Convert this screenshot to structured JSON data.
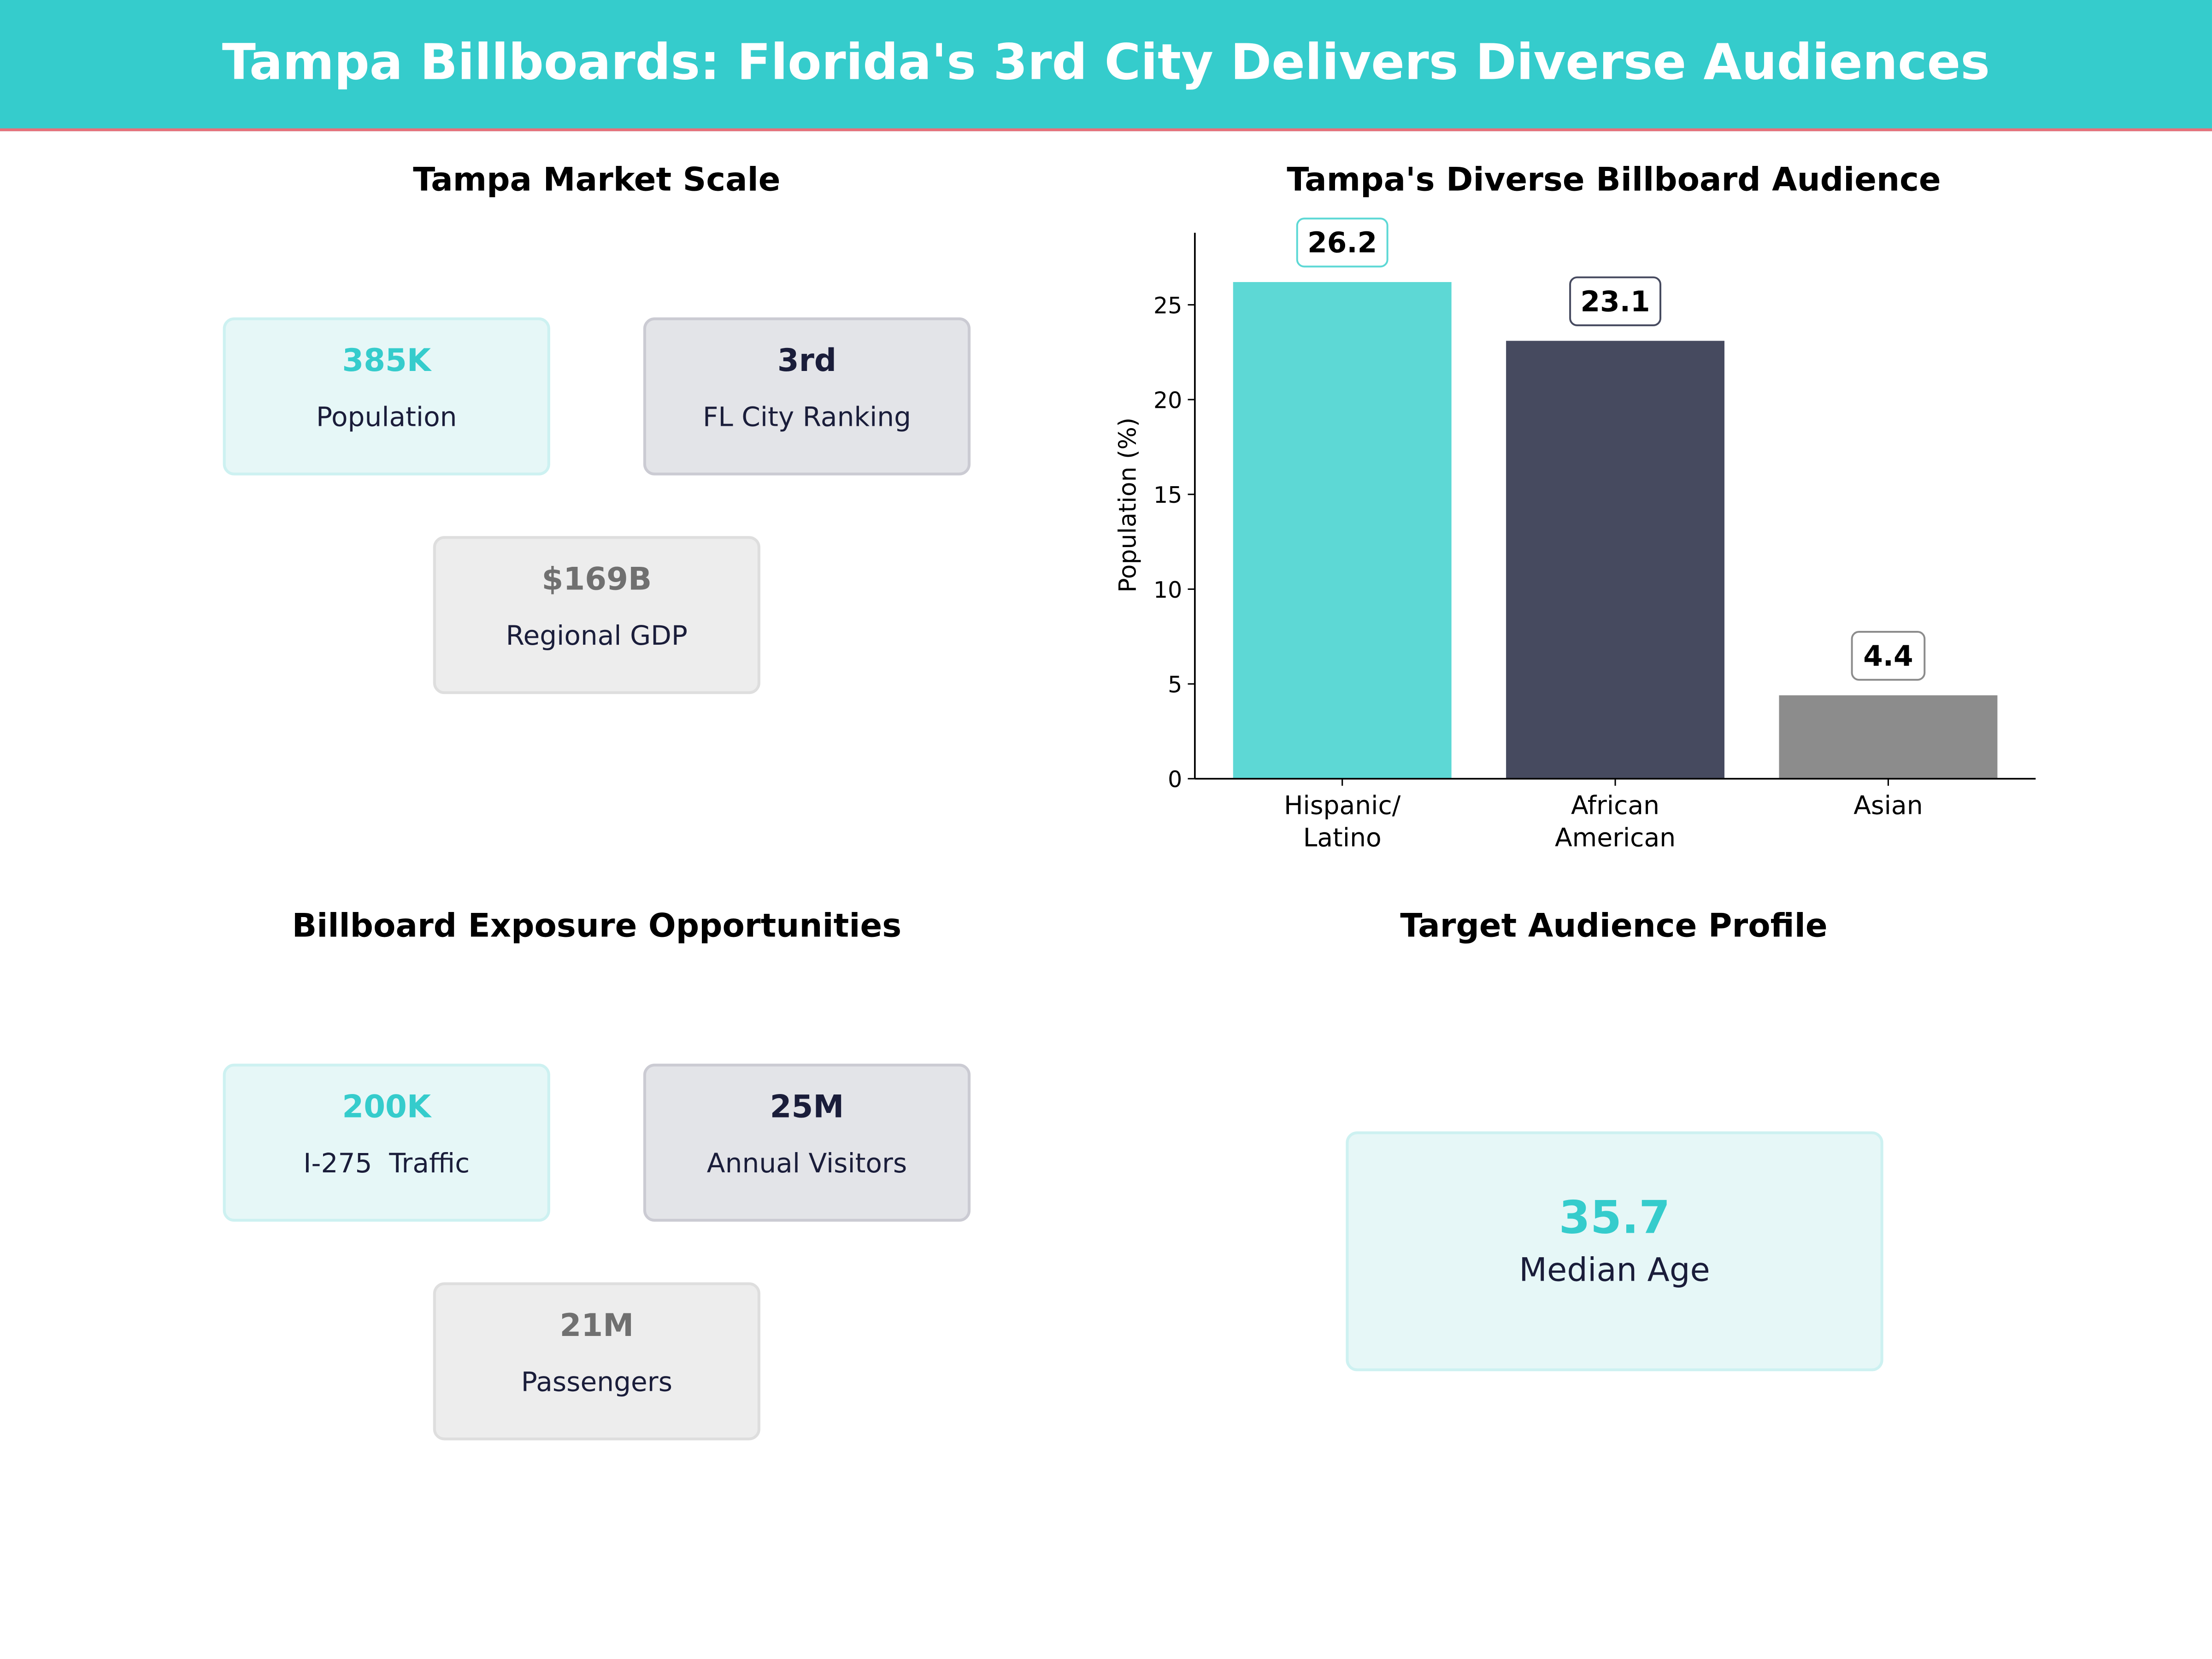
{
  "header": {
    "title": "Tampa Billboards: Florida's 3rd City Delivers Diverse Audiences"
  },
  "market_scale": {
    "title": "Tampa Market Scale",
    "cards": [
      {
        "value": "385K",
        "label": "Population",
        "style": "teal"
      },
      {
        "value": "3rd",
        "label": "FL City Ranking",
        "style": "dark"
      },
      {
        "value": "$169B",
        "label": "Regional GDP",
        "style": "gray"
      }
    ]
  },
  "exposure": {
    "title": "Billboard Exposure Opportunities",
    "cards": [
      {
        "value": "200K",
        "label": "I-275  Traffic",
        "style": "teal"
      },
      {
        "value": "25M",
        "label": "Annual Visitors",
        "style": "dark"
      },
      {
        "value": "21M",
        "label": "Passengers",
        "style": "gray"
      }
    ]
  },
  "audience_profile": {
    "title": "Target Audience Profile",
    "card": {
      "value": "35.7",
      "label": "Median Age"
    }
  },
  "colors": {
    "accent": "#35cccc",
    "dark": "#464a5f",
    "gray": "#8c8c8c",
    "header_line": "#e8707a"
  },
  "chart_data": {
    "type": "bar",
    "title": "Tampa's Diverse Billboard Audience",
    "categories": [
      [
        "Hispanic/",
        "Latino"
      ],
      [
        "African",
        "American"
      ],
      [
        "Asian"
      ]
    ],
    "values": [
      26.2,
      23.1,
      4.4
    ],
    "value_labels": [
      "26.2",
      "23.1",
      "4.4"
    ],
    "bar_colors": [
      "#5dd8d5",
      "#464a5f",
      "#8c8c8c"
    ],
    "label_edge_colors": [
      "#5dd8d5",
      "#464a5f",
      "#8c8c8c"
    ],
    "xlabel": "",
    "ylabel": "Population (%)",
    "ylim": [
      0,
      28.8
    ],
    "yticks": [
      0,
      5,
      10,
      15,
      20,
      25
    ],
    "grid": false
  }
}
